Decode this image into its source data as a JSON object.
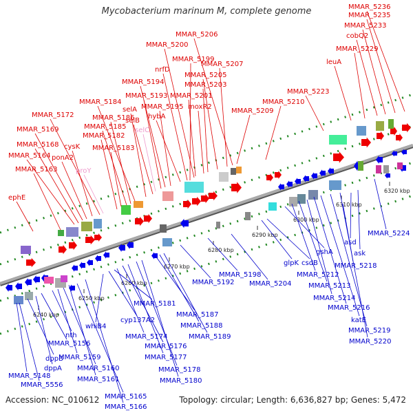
{
  "title": "Mycobacterium marinum M, complete genome",
  "footer": {
    "accession": "Accession: NC_010612",
    "stats": "Topology: circular; Length: 6,636,827 bp; Genes: 5,472"
  },
  "colors": {
    "forward_label": "#dd0000",
    "reverse_label": "#0000cc",
    "rna_label": "#ee99cc",
    "axis": "#888888",
    "tick": "#228822"
  },
  "scale_labels": [
    "6240 kbp",
    "6250 kbp",
    "6260 kbp",
    "6270 kbp",
    "6280 kbp",
    "6290 kbp",
    "6300 kbp",
    "6310 kbp",
    "6320 kbp"
  ],
  "forward_genes": [
    "ephE",
    "MMAR_5163",
    "MMAR_5164",
    "MMAR_5168",
    "MMAR_5169",
    "ponA2",
    "cysK",
    "MMAR_5172",
    "proY",
    "MMAR_5182",
    "MMAR_5183",
    "MMAR_5185",
    "MMAR_5186",
    "MMAR_5184",
    "selA",
    "selB",
    "selC",
    "MMAR_5193",
    "MMAR_5194",
    "MMAR_5195",
    "hybA",
    "nrfD",
    "MMAR_5199",
    "MMAR_5200",
    "MMAR_5201",
    "moxR2",
    "MMAR_5203",
    "MMAR_5205",
    "MMAR_5207",
    "MMAR_5206",
    "MMAR_5209",
    "MMAR_5210",
    "MMAR_5223",
    "leuA",
    "MMAR_5229",
    "cobQ2",
    "MMAR_5233",
    "MMAR_5235",
    "MMAR_5236"
  ],
  "reverse_genes": [
    "MMAR_5148",
    "MMAR_5556",
    "dppB",
    "dppA",
    "MMAR_5156",
    "nth",
    "MMAR_5159",
    "MMAR_5160",
    "MMAR_5161",
    "MMAR_5165",
    "MMAR_5166",
    "whiB4",
    "cyp137A2",
    "MMAR_5181",
    "MMAR_5174",
    "MMAR_5176",
    "MMAR_5177",
    "MMAR_5178",
    "MMAR_5180",
    "MMAR_5187",
    "MMAR_5188",
    "MMAR_5189",
    "MMAR_5192",
    "MMAR_5198",
    "MMAR_5204",
    "glpK",
    "csdB",
    "gshA",
    "MMAR_5212",
    "MMAR_5213",
    "MMAR_5214",
    "MMAR_5216",
    "katE",
    "MMAR_5219",
    "MMAR_5220",
    "MMAR_5218",
    "asd",
    "ask",
    "MMAR_5224"
  ]
}
